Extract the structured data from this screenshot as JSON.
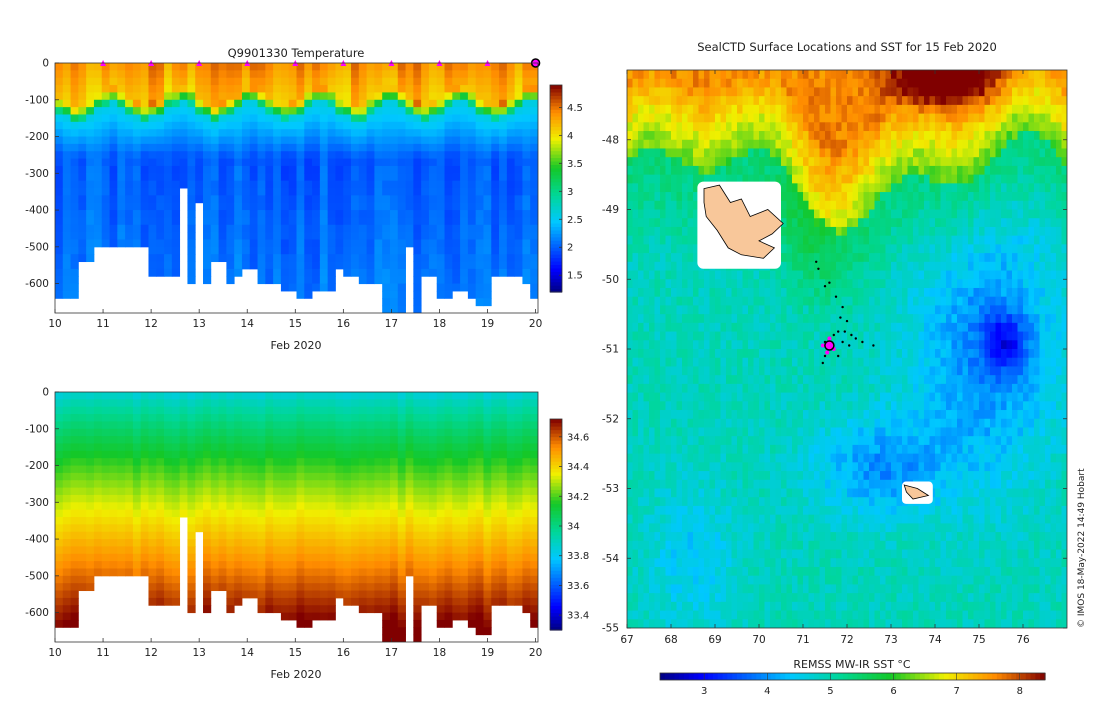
{
  "chart_data": [
    {
      "type": "heatmap",
      "title": "Q9901330  Temperature",
      "xlabel": "Feb 2020",
      "ylabel": "",
      "xlim": [
        10,
        20.05
      ],
      "ylim": [
        -680,
        0
      ],
      "x_ticks": [
        "10",
        "11",
        "12",
        "13",
        "14",
        "15",
        "16",
        "17",
        "18",
        "19",
        "20"
      ],
      "y_ticks": [
        "0",
        "-100",
        "-200",
        "-300",
        "-400",
        "-500",
        "-600"
      ],
      "colorbar": {
        "min": 1.2,
        "max": 4.9,
        "ticks": [
          "1.5",
          "2",
          "2.5",
          "3",
          "3.5",
          "4",
          "4.5"
        ]
      },
      "profile_max_depth_m": [
        630,
        630,
        640,
        540,
        540,
        500,
        500,
        500,
        500,
        500,
        500,
        500,
        570,
        570,
        580,
        580,
        340,
        590,
        370,
        600,
        540,
        540,
        600,
        580,
        560,
        560,
        600,
        600,
        600,
        620,
        620,
        630,
        630,
        610,
        610,
        610,
        560,
        580,
        580,
        600,
        600,
        600,
        670,
        670,
        670,
        500,
        680,
        580,
        580,
        640,
        640,
        610,
        610,
        640,
        660,
        660,
        570,
        570,
        580,
        580,
        600,
        630
      ],
      "profile_markers_day": [
        11,
        12,
        13,
        14,
        15,
        16,
        17,
        18,
        19
      ],
      "surface_temp_c": 4.4,
      "thermocline_depth_m": 110,
      "deep_temp_c": 2.0
    },
    {
      "type": "heatmap",
      "title": "",
      "xlabel": "Feb 2020",
      "ylabel": "",
      "xlim": [
        10,
        20.05
      ],
      "ylim": [
        -680,
        0
      ],
      "x_ticks": [
        "10",
        "11",
        "12",
        "13",
        "14",
        "15",
        "16",
        "17",
        "18",
        "19",
        "20"
      ],
      "y_ticks": [
        "0",
        "-100",
        "-200",
        "-300",
        "-400",
        "-500",
        "-600"
      ],
      "colorbar": {
        "min": 33.3,
        "max": 34.72,
        "ticks": [
          "33.4",
          "33.6",
          "33.8",
          "34",
          "34.2",
          "34.4",
          "34.6"
        ]
      },
      "surface_salinity": 33.85,
      "deep_salinity": 34.72
    },
    {
      "type": "heatmap",
      "title": "SealCTD Surface Locations and SST for 15 Feb 2020",
      "xlabel": "",
      "ylabel": "",
      "xlim": [
        67,
        77
      ],
      "ylim": [
        -55,
        -47
      ],
      "x_ticks": [
        "67",
        "68",
        "69",
        "70",
        "71",
        "72",
        "73",
        "74",
        "75",
        "76"
      ],
      "y_ticks": [
        "-48",
        "-49",
        "-50",
        "-51",
        "-52",
        "-53",
        "-54",
        "-55"
      ],
      "colorbar": {
        "label": "REMSS MW-IR SST °C",
        "min": 2.3,
        "max": 8.4,
        "ticks": [
          "3",
          "4",
          "5",
          "6",
          "7",
          "8"
        ]
      },
      "islands": [
        {
          "name": "Kerguelen",
          "lon": 69.6,
          "lat": -49.3
        },
        {
          "name": "Heard",
          "lon": 73.5,
          "lat": -53.05
        }
      ],
      "current_position": {
        "lon": 71.6,
        "lat": -50.95
      },
      "track_points": [
        [
          71.3,
          -49.75
        ],
        [
          71.35,
          -49.85
        ],
        [
          71.5,
          -50.1
        ],
        [
          71.6,
          -50.05
        ],
        [
          71.75,
          -50.25
        ],
        [
          71.9,
          -50.4
        ],
        [
          71.85,
          -50.55
        ],
        [
          72.0,
          -50.6
        ],
        [
          71.8,
          -50.75
        ],
        [
          71.95,
          -50.75
        ],
        [
          72.1,
          -50.8
        ],
        [
          71.7,
          -50.8
        ],
        [
          72.2,
          -50.85
        ],
        [
          72.35,
          -50.9
        ],
        [
          71.5,
          -50.9
        ],
        [
          72.05,
          -50.95
        ],
        [
          71.9,
          -50.9
        ],
        [
          71.65,
          -51.0
        ],
        [
          72.6,
          -50.95
        ],
        [
          71.5,
          -51.1
        ],
        [
          71.45,
          -51.2
        ],
        [
          71.8,
          -51.1
        ]
      ],
      "recent_points": [
        [
          71.45,
          -50.95
        ],
        [
          71.55,
          -51.05
        ],
        [
          71.7,
          -51.0
        ],
        [
          71.6,
          -50.85
        ]
      ]
    }
  ],
  "footer": {
    "credit": "© IMOS 18-May-2022 14:49 Hobart"
  },
  "colors": {
    "island_fill": "#f8c79a",
    "marker": "#ff00ff",
    "land_halo": "#ffffff"
  }
}
